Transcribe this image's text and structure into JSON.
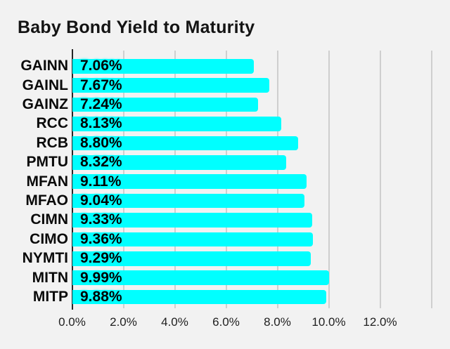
{
  "chart_data": {
    "type": "bar",
    "orientation": "horizontal",
    "title": "Baby Bond Yield to Maturity",
    "categories": [
      "GAINN",
      "GAINL",
      "GAINZ",
      "RCC",
      "RCB",
      "PMTU",
      "MFAN",
      "MFAO",
      "CIMN",
      "CIMO",
      "NYMTI",
      "MITN",
      "MITP"
    ],
    "values": [
      7.06,
      7.67,
      7.24,
      8.13,
      8.8,
      8.32,
      9.11,
      9.04,
      9.33,
      9.36,
      9.29,
      9.99,
      9.88
    ],
    "value_labels": [
      "7.06%",
      "7.67%",
      "7.24%",
      "8.13%",
      "8.80%",
      "8.32%",
      "9.11%",
      "9.04%",
      "9.33%",
      "9.36%",
      "9.29%",
      "9.99%",
      "9.88%"
    ],
    "xlabel": "",
    "ylabel": "",
    "x_ticks": [
      0,
      2,
      4,
      6,
      8,
      10,
      12
    ],
    "x_tick_labels": [
      "0.0%",
      "2.0%",
      "4.0%",
      "6.0%",
      "8.0%",
      "10.0%",
      "12.0%"
    ],
    "xlim": [
      0,
      14
    ],
    "gridline_step": 2,
    "grid": "vertical-only",
    "legend": "none",
    "colors": {
      "background": "#f2f2f2",
      "bar": "#00ffff",
      "gridline": "#cfcfcf",
      "axis": "#262626",
      "title_text": "#141414",
      "category_text": "#0a0a0a",
      "value_text": "#000000",
      "tick_text": "#1f1f1f"
    }
  }
}
